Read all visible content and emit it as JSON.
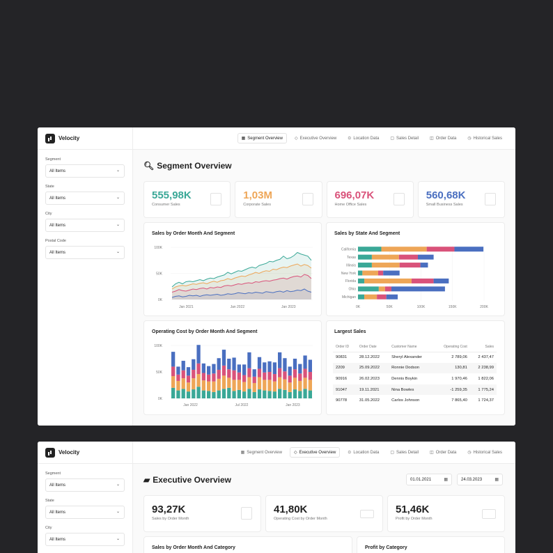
{
  "brand": "Velocity",
  "filters": [
    {
      "label": "Segment",
      "value": "All Items"
    },
    {
      "label": "State",
      "value": "All Items"
    },
    {
      "label": "City",
      "value": "All Items"
    },
    {
      "label": "Postal Code",
      "value": "All Items"
    }
  ],
  "nav": [
    {
      "label": "Segment Overview",
      "icon": "grid-icon"
    },
    {
      "label": "Executive Overview",
      "icon": "diamond-icon"
    },
    {
      "label": "Location Data",
      "icon": "pin-icon"
    },
    {
      "label": "Sales Detail",
      "icon": "bag-icon"
    },
    {
      "label": "Order Data",
      "icon": "box-icon"
    },
    {
      "label": "Historical Sales",
      "icon": "clock-icon"
    }
  ],
  "segment_page": {
    "title": "Segment Overview",
    "kpis": [
      {
        "value": "555,98K",
        "label": "Consumer Sales",
        "color": "#3aa897"
      },
      {
        "value": "1,03M",
        "label": "Corporate Sales",
        "color": "#eea657"
      },
      {
        "value": "696,07K",
        "label": "Home Office Sales",
        "color": "#d9527a"
      },
      {
        "value": "560,68K",
        "label": "Small Business Sales",
        "color": "#4a6fc0"
      }
    ],
    "line_card_title": "Sales by Order Month And Segment",
    "state_card_title": "Sales by State And Segment",
    "cost_card_title": "Operating Cost by Order Month And Segment",
    "largest": {
      "title": "Largest Sales",
      "columns": [
        "Order ID",
        "Order Date",
        "Customer Name",
        "Operating Cost",
        "Sales"
      ],
      "rows": [
        [
          "90831",
          "28.12.2022",
          "Sheryl Alexander",
          "2 789,06",
          "2 437,47"
        ],
        [
          "2209",
          "25.09.2022",
          "Ronnie Dodson",
          "130,81",
          "2 238,99"
        ],
        [
          "90916",
          "26.02.2023",
          "Dennis Boykin",
          "1 970,46",
          "1 822,06"
        ],
        [
          "91047",
          "19.11.2021",
          "Nina Bowles",
          "-1 259,35",
          "1 775,24"
        ],
        [
          "90778",
          "31.05.2022",
          "Carlos Johnson",
          "7 865,40",
          "1 724,37"
        ]
      ]
    }
  },
  "exec_page": {
    "title": "Executive Overview",
    "date_from": "01.01.2021",
    "date_to": "24.03.2023",
    "kpis": [
      {
        "value": "93,27K",
        "label": "Sales by Order Month"
      },
      {
        "value": "41,80K",
        "label": "Operating Cost by Order Month"
      },
      {
        "value": "51,46K",
        "label": "Profit by Order Month"
      }
    ],
    "card1_title": "Sales by Order Month And Category",
    "card2_title": "Profit by Category"
  },
  "colors": {
    "consumer": "#3aa897",
    "corporate": "#eea657",
    "home": "#d9527a",
    "small": "#4a6fc0"
  },
  "chart_data": [
    {
      "type": "area",
      "title": "Sales by Order Month And Segment",
      "xticks": [
        "Jan 2021",
        "Jan 2022",
        "Jan 2023"
      ],
      "yticks": [
        "100K",
        "50K",
        "0K"
      ],
      "ylim": [
        0,
        100
      ],
      "series": [
        {
          "values": [
            24,
            30,
            33,
            30,
            34,
            35,
            34,
            36,
            38,
            36,
            39,
            41,
            40,
            43,
            45,
            47,
            52,
            49,
            52,
            55,
            54,
            57,
            60,
            62,
            60,
            65,
            67,
            69,
            73,
            72,
            75,
            77,
            83,
            78,
            80,
            84,
            90,
            87,
            85,
            83,
            75
          ]
        },
        {
          "values": [
            20,
            24,
            26,
            27,
            26,
            28,
            30,
            29,
            31,
            32,
            30,
            33,
            35,
            33,
            36,
            37,
            40,
            38,
            41,
            43,
            45,
            44,
            47,
            49,
            52,
            50,
            53,
            55,
            54,
            58,
            57,
            60,
            62,
            61,
            64,
            66,
            68,
            64,
            67,
            65,
            60
          ]
        },
        {
          "values": [
            14,
            16,
            19,
            17,
            16,
            18,
            20,
            19,
            21,
            22,
            20,
            23,
            22,
            24,
            23,
            26,
            27,
            26,
            28,
            30,
            29,
            31,
            32,
            31,
            34,
            33,
            35,
            36,
            35,
            37,
            38,
            40,
            41,
            39,
            42,
            44,
            45,
            43,
            48,
            46,
            40
          ]
        },
        {
          "values": [
            4,
            6,
            7,
            5,
            6,
            8,
            7,
            8,
            6,
            8,
            9,
            8,
            9,
            10,
            8,
            9,
            11,
            10,
            11,
            13,
            12,
            11,
            13,
            12,
            14,
            13,
            12,
            15,
            14,
            13,
            15,
            16,
            14,
            17,
            15,
            16,
            18,
            17,
            20,
            16,
            14
          ]
        }
      ]
    },
    {
      "type": "bar",
      "title": "Sales by State And Segment",
      "categories": [
        "California",
        "Texas",
        "Illinois",
        "New York",
        "Florida",
        "Ohio",
        "Michigan"
      ],
      "xticks": [
        "0K",
        "50K",
        "100K",
        "150K",
        "200K"
      ],
      "xlim": [
        0,
        200
      ],
      "series": [
        {
          "values": [
            37,
            22,
            22,
            7,
            10,
            33,
            10
          ]
        },
        {
          "values": [
            72,
            43,
            44,
            25,
            75,
            10,
            20
          ]
        },
        {
          "values": [
            44,
            30,
            33,
            8,
            35,
            10,
            15
          ]
        },
        {
          "values": [
            46,
            25,
            12,
            26,
            24,
            85,
            18
          ]
        }
      ]
    },
    {
      "type": "bar",
      "title": "Operating Cost by Order Month And Segment",
      "xticks": [
        "Jan 2022",
        "Jul 2022",
        "Jan 2023"
      ],
      "yticks": [
        "100K",
        "50K",
        "0K"
      ],
      "ylim": [
        0,
        100
      ],
      "series": [
        {
          "values": [
            20,
            15,
            18,
            13,
            17,
            22,
            15,
            14,
            12,
            15,
            18,
            20,
            14,
            16,
            13,
            18,
            12,
            17,
            15,
            14,
            13,
            18,
            16,
            12,
            17,
            14,
            18,
            15
          ]
        },
        {
          "values": [
            22,
            18,
            20,
            17,
            21,
            24,
            19,
            18,
            20,
            22,
            25,
            19,
            21,
            19,
            18,
            22,
            17,
            23,
            20,
            21,
            19,
            22,
            20,
            18,
            22,
            19,
            21,
            20
          ]
        },
        {
          "values": [
            18,
            12,
            15,
            13,
            16,
            20,
            14,
            13,
            15,
            17,
            19,
            16,
            18,
            14,
            13,
            17,
            12,
            16,
            14,
            15,
            14,
            17,
            15,
            13,
            16,
            14,
            17,
            15
          ]
        },
        {
          "values": [
            28,
            15,
            18,
            16,
            20,
            35,
            18,
            16,
            18,
            22,
            30,
            20,
            24,
            15,
            20,
            30,
            14,
            22,
            19,
            20,
            22,
            30,
            25,
            17,
            20,
            18,
            25,
            23
          ]
        }
      ]
    }
  ]
}
